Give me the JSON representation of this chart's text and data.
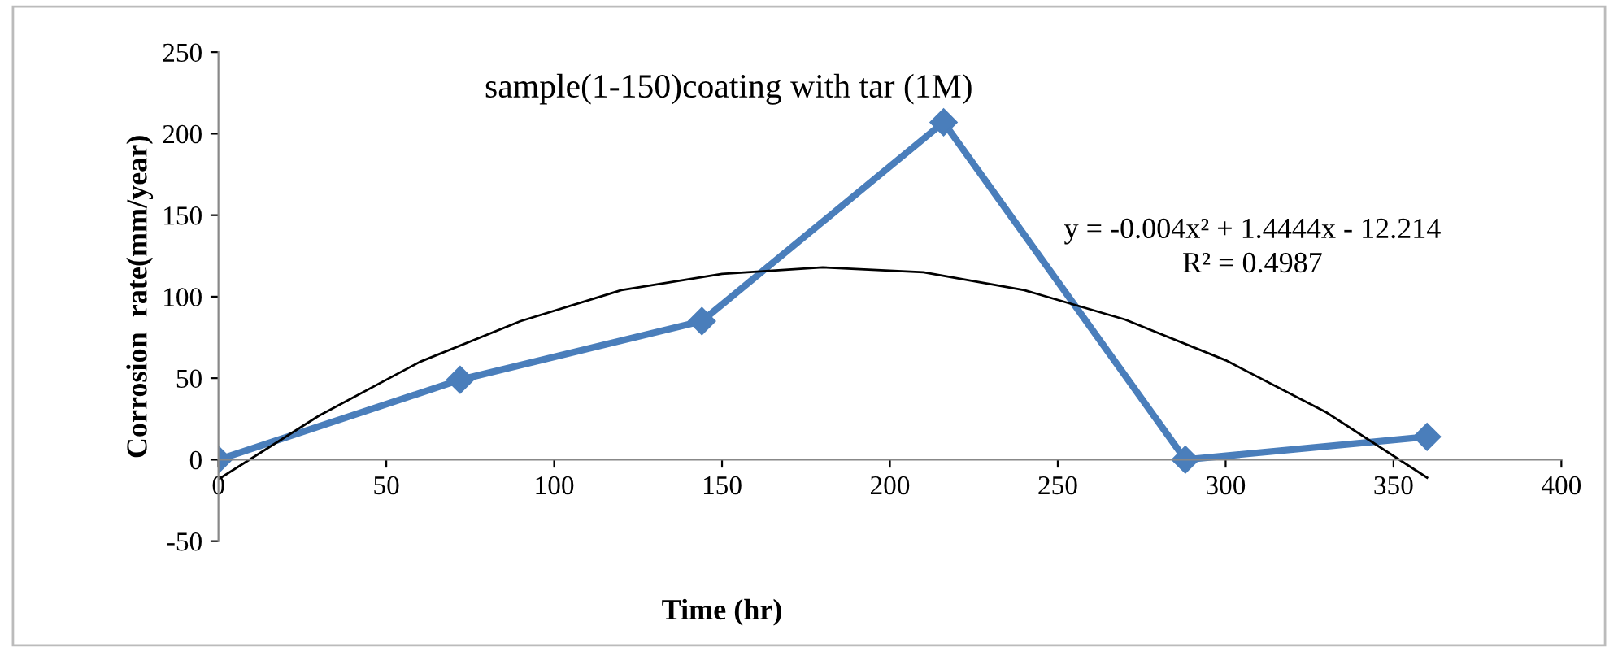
{
  "chart_data": {
    "type": "line",
    "title": "sample(1-150)coating with tar (1M)",
    "xlabel": "Time (hr)",
    "ylabel": "Corrosion  rate(mm/year)",
    "x": [
      0,
      72,
      144,
      216,
      288,
      360
    ],
    "series": [
      {
        "color": "#4a7ebb",
        "values": [
          0,
          49,
          85,
          207,
          0,
          14
        ],
        "marker": "diamond"
      },
      {
        "type": "line",
        "color": "#000000",
        "marker": "none",
        "x": [
          0,
          30,
          60,
          90,
          120,
          150,
          180,
          210,
          240,
          270,
          300,
          330,
          360
        ],
        "values": [
          -12,
          27,
          60,
          85,
          104,
          114,
          118,
          115,
          104,
          86,
          61,
          29,
          -11
        ]
      }
    ],
    "xlim": [
      0,
      400
    ],
    "ylim": [
      -50,
      250
    ],
    "xticks": [
      0,
      50,
      100,
      150,
      200,
      250,
      300,
      350,
      400
    ],
    "yticks": [
      -50,
      0,
      50,
      100,
      150,
      200,
      250
    ],
    "grid": false,
    "legend": false,
    "annotations": [
      "y = -0.004x² + 1.4444x - 12.214",
      "R² = 0.4987"
    ]
  }
}
